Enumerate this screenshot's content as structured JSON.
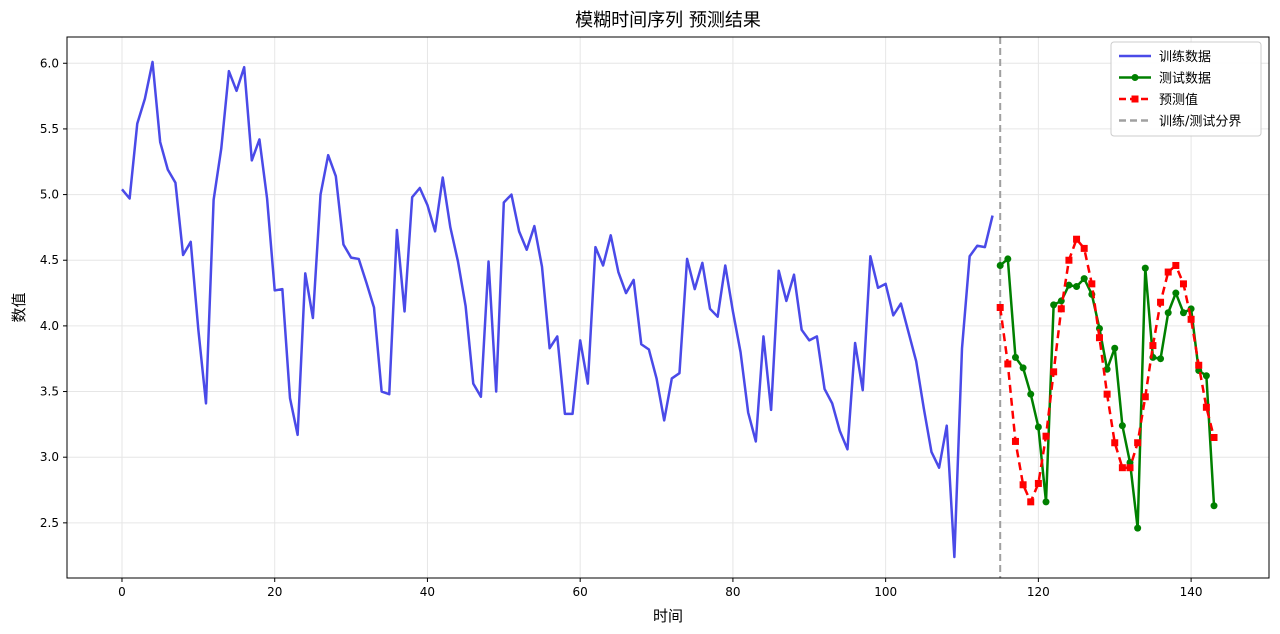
{
  "chart_data": {
    "type": "line",
    "title": "模糊时间序列 预测结果",
    "xlabel": "时间",
    "ylabel": "数值",
    "xlim": [
      -7.2,
      150.2
    ],
    "ylim": [
      2.08,
      6.2
    ],
    "xticks": [
      0,
      20,
      40,
      60,
      80,
      100,
      120,
      140
    ],
    "yticks": [
      2.5,
      3.0,
      3.5,
      4.0,
      4.5,
      5.0,
      5.5,
      6.0
    ],
    "ytick_labels": [
      "2.5",
      "3.0",
      "3.5",
      "4.0",
      "4.5",
      "5.0",
      "5.5",
      "6.0"
    ],
    "grid": true,
    "legend_position": "top-right",
    "split_x": 115,
    "series": [
      {
        "name": "训练数据",
        "color": "#4a4ae8",
        "style": "solid",
        "marker": "none",
        "x_start": 0,
        "values": [
          5.04,
          4.97,
          5.54,
          5.73,
          6.01,
          5.4,
          5.19,
          5.09,
          4.54,
          4.64,
          3.97,
          3.41,
          4.96,
          5.35,
          5.94,
          5.79,
          5.97,
          5.26,
          5.42,
          4.97,
          4.27,
          4.28,
          3.45,
          3.17,
          4.4,
          4.06,
          5.0,
          5.3,
          5.14,
          4.62,
          4.52,
          4.51,
          4.33,
          4.14,
          3.5,
          3.48,
          4.73,
          4.11,
          4.98,
          5.05,
          4.92,
          4.72,
          5.13,
          4.75,
          4.49,
          4.15,
          3.56,
          3.46,
          4.49,
          3.5,
          4.94,
          5.0,
          4.72,
          4.58,
          4.76,
          4.45,
          3.83,
          3.92,
          3.33,
          3.33,
          3.89,
          3.56,
          4.6,
          4.46,
          4.69,
          4.41,
          4.25,
          4.35,
          3.86,
          3.82,
          3.6,
          3.28,
          3.6,
          3.64,
          4.51,
          4.28,
          4.48,
          4.13,
          4.07,
          4.46,
          4.11,
          3.8,
          3.34,
          3.12,
          3.92,
          3.36,
          4.42,
          4.19,
          4.39,
          3.97,
          3.89,
          3.92,
          3.52,
          3.41,
          3.2,
          3.06,
          3.87,
          3.51,
          4.53,
          4.29,
          4.32,
          4.08,
          4.17,
          3.95,
          3.73,
          3.37,
          3.04,
          2.92,
          3.24,
          2.24,
          3.83,
          4.53,
          4.61,
          4.6,
          4.84
        ]
      },
      {
        "name": "测试数据",
        "color": "#008000",
        "style": "solid",
        "marker": "circle",
        "x_start": 115,
        "values": [
          4.46,
          4.51,
          3.76,
          3.68,
          3.48,
          3.23,
          2.66,
          4.16,
          4.19,
          4.31,
          4.3,
          4.36,
          4.24,
          3.98,
          3.67,
          3.83,
          3.24,
          2.96,
          2.46,
          4.44,
          3.76,
          3.75,
          4.1,
          4.25,
          4.1,
          4.13,
          3.66,
          3.62,
          2.63
        ]
      },
      {
        "name": "预测值",
        "color": "#ff0000",
        "style": "dashed",
        "marker": "square",
        "x_start": 115,
        "values": [
          4.14,
          3.71,
          3.12,
          2.79,
          2.66,
          2.8,
          3.16,
          3.65,
          4.13,
          4.5,
          4.66,
          4.59,
          4.32,
          3.91,
          3.48,
          3.11,
          2.92,
          2.92,
          3.11,
          3.46,
          3.85,
          4.18,
          4.41,
          4.46,
          4.32,
          4.05,
          3.7,
          3.38,
          3.15
        ]
      }
    ],
    "split_line": {
      "name": "训练/测试分界",
      "color": "#a0a0a0",
      "style": "dashed"
    }
  }
}
